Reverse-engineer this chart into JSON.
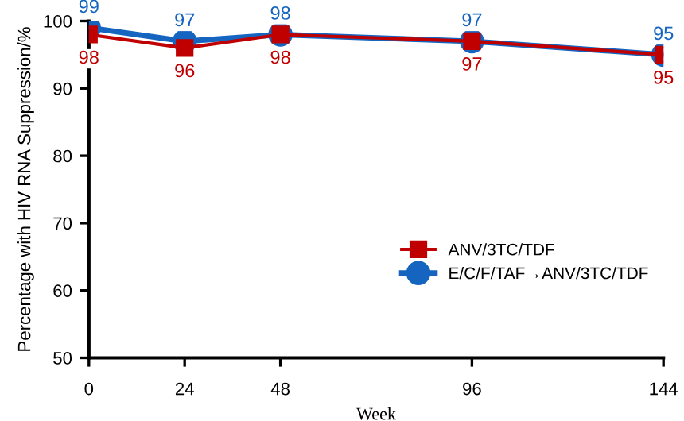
{
  "chart_data": {
    "type": "line",
    "xlabel": "Week",
    "ylabel": "Percentage with HIV RNA Suppression/%",
    "x": [
      0,
      24,
      48,
      96,
      144
    ],
    "series": [
      {
        "name": "ANV/3TC/TDF",
        "color": "#c00000",
        "values": [
          98,
          96,
          98,
          97,
          95
        ],
        "marker": "square"
      },
      {
        "name": "E/C/F/TAF→ANV/3TC/TDF",
        "color": "#1565c0",
        "values": [
          99,
          97,
          98,
          97,
          95
        ],
        "marker": "circle"
      }
    ],
    "xlim": [
      0,
      144
    ],
    "xticks": [
      0,
      24,
      48,
      96,
      144
    ],
    "ylim": [
      50,
      100
    ],
    "yticks": [
      50,
      60,
      70,
      80,
      90,
      100
    ],
    "data_labels": true,
    "grid": false,
    "legend": "bottom right",
    "line_style": "solid"
  }
}
